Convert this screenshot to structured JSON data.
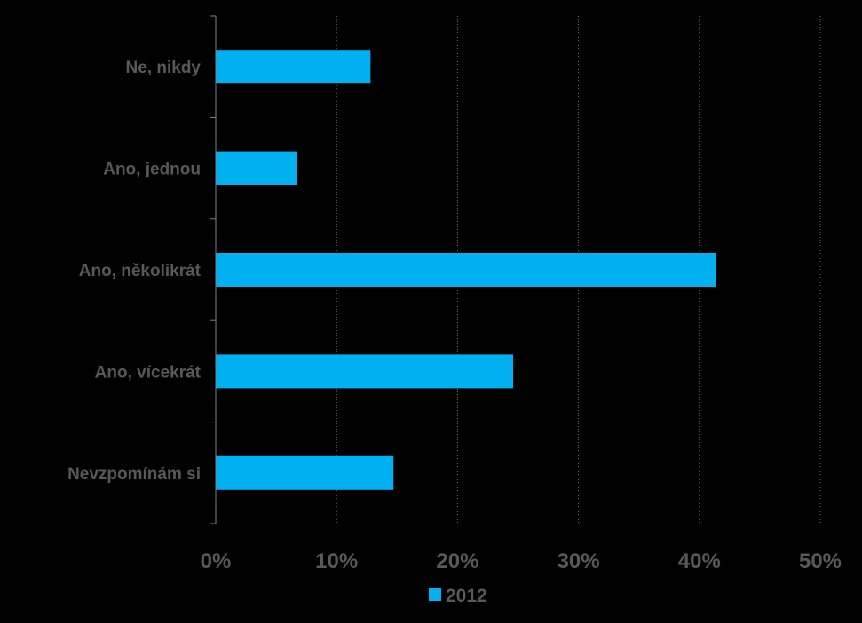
{
  "chart_data": {
    "type": "bar",
    "orientation": "horizontal",
    "categories": [
      "Ne, nikdy",
      "Ano, jednou",
      "Ano, několikrát",
      "Ano, vícekrát",
      "Nevzpomínám si"
    ],
    "series": [
      {
        "name": "2012",
        "values": [
          12.8,
          6.7,
          41.4,
          24.6,
          14.7
        ],
        "color": "#00B0F0"
      }
    ],
    "xlim": [
      0,
      50
    ],
    "x_ticks": [
      "0%",
      "10%",
      "20%",
      "30%",
      "40%",
      "50%"
    ],
    "grid": "vertical dotted",
    "legend": "bottom",
    "background": "#000000",
    "text_color": "#595959"
  }
}
